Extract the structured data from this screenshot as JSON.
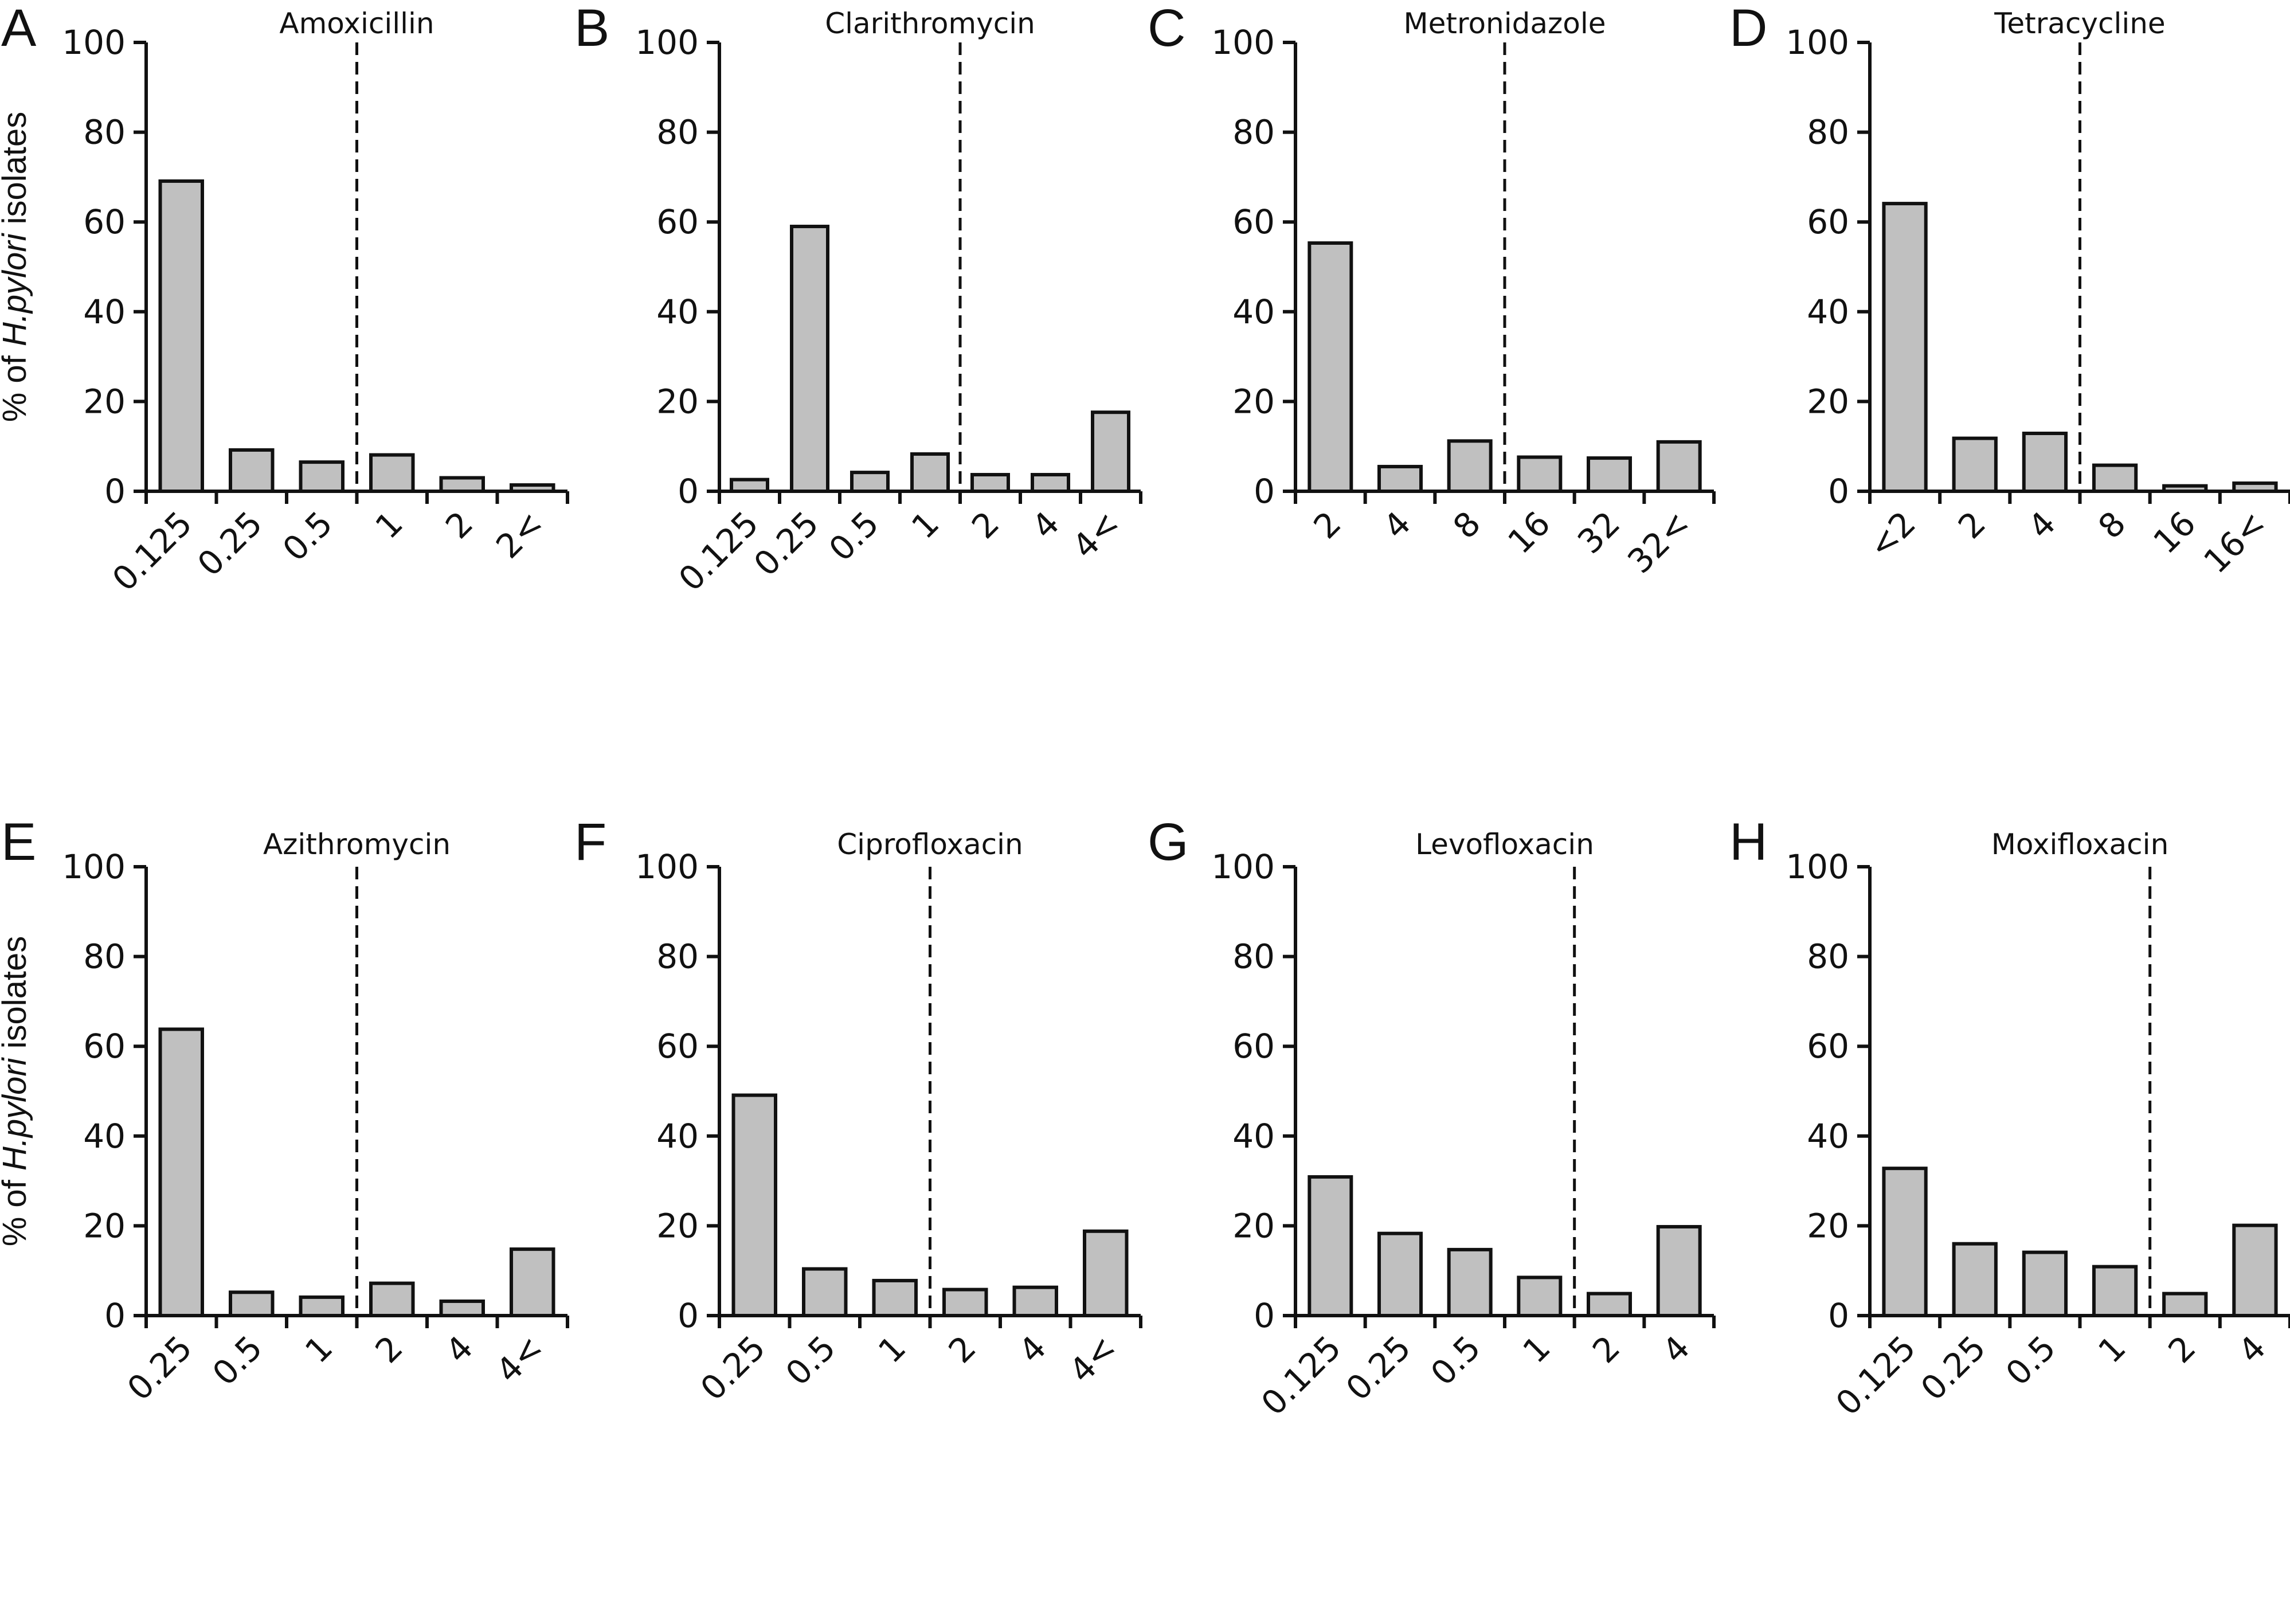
{
  "chart_data": [
    {
      "panel": "A",
      "type": "bar",
      "title": "Amoxicillin",
      "ylabel": "% of H.pylori isolates",
      "ylim": [
        0,
        100
      ],
      "yticks": [
        0,
        20,
        40,
        60,
        80,
        100
      ],
      "categories": [
        "0.125",
        "0.25",
        "0.5",
        "1",
        "2",
        "2<"
      ],
      "values": [
        69.1,
        9.2,
        6.5,
        8.1,
        3.0,
        1.4
      ],
      "breakpoint_after_index": 2
    },
    {
      "panel": "B",
      "type": "bar",
      "title": "Clarithromycin",
      "ylabel": "",
      "ylim": [
        0,
        100
      ],
      "yticks": [
        0,
        20,
        40,
        60,
        80,
        100
      ],
      "categories": [
        "0.125",
        "0.25",
        "0.5",
        "1",
        "2",
        "4",
        "4<"
      ],
      "values": [
        2.6,
        59.0,
        4.2,
        8.3,
        3.7,
        3.7,
        17.6
      ],
      "breakpoint_after_index": 3
    },
    {
      "panel": "C",
      "type": "bar",
      "title": "Metronidazole",
      "ylabel": "",
      "ylim": [
        0,
        100
      ],
      "yticks": [
        0,
        20,
        40,
        60,
        80,
        100
      ],
      "categories": [
        "2",
        "4",
        "8",
        "16",
        "32",
        "32<"
      ],
      "values": [
        55.3,
        5.5,
        11.2,
        7.6,
        7.4,
        11.0
      ],
      "breakpoint_after_index": 2
    },
    {
      "panel": "D",
      "type": "bar",
      "title": "Tetracycline",
      "ylabel": "",
      "ylim": [
        0,
        100
      ],
      "yticks": [
        0,
        20,
        40,
        60,
        80,
        100
      ],
      "categories": [
        "<2",
        "2",
        "4",
        "8",
        "16",
        "16<"
      ],
      "values": [
        64.1,
        11.8,
        12.9,
        5.8,
        1.2,
        1.8
      ],
      "breakpoint_after_index": 2
    },
    {
      "panel": "E",
      "type": "bar",
      "title": "Azithromycin",
      "ylabel": "% of H.pylori isolates",
      "ylim": [
        0,
        100
      ],
      "yticks": [
        0,
        20,
        40,
        60,
        80,
        100
      ],
      "categories": [
        "0.25",
        "0.5",
        "1",
        "2",
        "4",
        "4<"
      ],
      "values": [
        63.8,
        5.2,
        4.1,
        7.2,
        3.2,
        14.8
      ],
      "breakpoint_after_index": 2
    },
    {
      "panel": "F",
      "type": "bar",
      "title": "Ciprofloxacin",
      "ylabel": "",
      "ylim": [
        0,
        100
      ],
      "yticks": [
        0,
        20,
        40,
        60,
        80,
        100
      ],
      "categories": [
        "0.25",
        "0.5",
        "1",
        "2",
        "4",
        "4<"
      ],
      "values": [
        49.1,
        10.4,
        7.8,
        5.8,
        6.3,
        18.8
      ],
      "breakpoint_after_index": 2
    },
    {
      "panel": "G",
      "type": "bar",
      "title": "Levofloxacin",
      "ylabel": "",
      "ylim": [
        0,
        100
      ],
      "yticks": [
        0,
        20,
        40,
        60,
        80,
        100
      ],
      "categories": [
        "0.125",
        "0.25",
        "0.5",
        "1",
        "2",
        "4"
      ],
      "values": [
        30.9,
        18.3,
        14.7,
        8.5,
        4.9,
        19.8
      ],
      "breakpoint_after_index": 3
    },
    {
      "panel": "H",
      "type": "bar",
      "title": "Moxifloxacin",
      "ylabel": "",
      "ylim": [
        0,
        100
      ],
      "yticks": [
        0,
        20,
        40,
        60,
        80,
        100
      ],
      "categories": [
        "0.125",
        "0.25",
        "0.5",
        "1",
        "2",
        "4"
      ],
      "values": [
        32.8,
        16.0,
        14.1,
        10.9,
        4.9,
        20.1
      ],
      "breakpoint_after_index": 3
    }
  ],
  "ylabel_parts": {
    "prefix": "% of ",
    "italic": "H.pylori",
    "suffix": " isolates"
  },
  "colors": {
    "bar_fill": "#c0c0c0",
    "stroke": "#111111"
  }
}
